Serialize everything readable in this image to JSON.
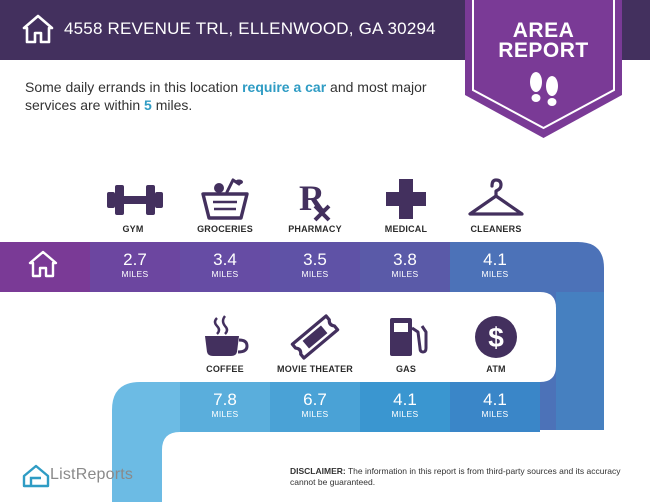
{
  "header": {
    "address": "4558 REVENUE TRL, ELLENWOOD, GA 30294",
    "badge_line1": "AREA",
    "badge_line2": "REPORT"
  },
  "intro": {
    "text_before": "Some daily errands in this location ",
    "highlight": "require a car",
    "text_middle": " and most major services are within ",
    "distance_value": "5",
    "text_after": " miles."
  },
  "services_row1": [
    {
      "label": "GYM",
      "icon": "dumbbell-icon",
      "distance": "2.7",
      "unit": "MILES"
    },
    {
      "label": "GROCERIES",
      "icon": "grocery-basket-icon",
      "distance": "3.4",
      "unit": "MILES"
    },
    {
      "label": "PHARMACY",
      "icon": "rx-icon",
      "distance": "3.5",
      "unit": "MILES"
    },
    {
      "label": "MEDICAL",
      "icon": "medical-cross-icon",
      "distance": "3.8",
      "unit": "MILES"
    },
    {
      "label": "CLEANERS",
      "icon": "hanger-icon",
      "distance": "4.1",
      "unit": "MILES"
    }
  ],
  "services_row2": [
    {
      "label": "COFFEE",
      "icon": "coffee-cup-icon",
      "distance": "7.8",
      "unit": "MILES"
    },
    {
      "label": "MOVIE THEATER",
      "icon": "movie-ticket-icon",
      "distance": "6.7",
      "unit": "MILES"
    },
    {
      "label": "GAS",
      "icon": "gas-pump-icon",
      "distance": "4.1",
      "unit": "MILES"
    },
    {
      "label": "ATM",
      "icon": "dollar-coin-icon",
      "distance": "4.1",
      "unit": "MILES"
    }
  ],
  "footer": {
    "logo_text": "ListReports",
    "disclaimer_label": "DISCLAIMER:",
    "disclaimer_text": " The information in this report is from third-party sources and its accuracy cannot be guaranteed."
  },
  "colors": {
    "header": "#43305e",
    "badge": "#7a3a96",
    "row1_home": "#7a3a96",
    "row1_a": "#6c46a0",
    "row1_b": "#5f52a6",
    "row1_c": "#5a5aa8",
    "row1_d": "#4c72b8",
    "row2": "#3a86c8",
    "row2_light": "#6cbbe4",
    "highlight": "#2f9cc4",
    "icon": "#43305e"
  }
}
